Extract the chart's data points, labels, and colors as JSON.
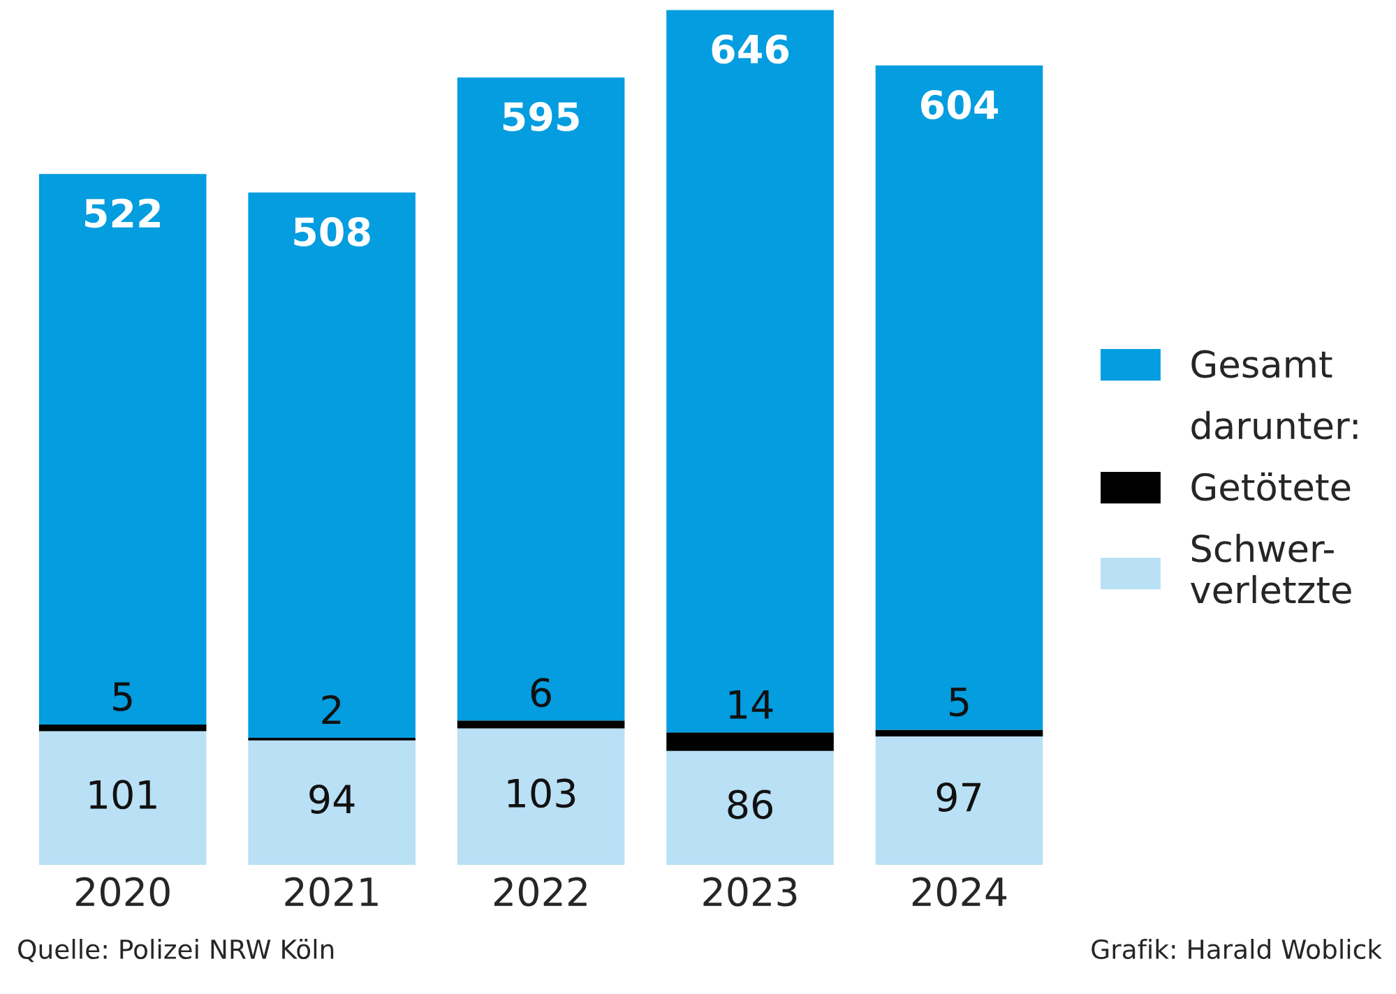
{
  "chart_data": {
    "type": "bar",
    "stacked": true,
    "categories": [
      "2020",
      "2021",
      "2022",
      "2023",
      "2024"
    ],
    "series": [
      {
        "name": "Schwer-\nverletzte",
        "color": "#b9e0f5",
        "values": [
          101,
          94,
          103,
          86,
          97
        ],
        "value_labels": [
          "101",
          "94",
          "103",
          "86",
          "97"
        ]
      },
      {
        "name": "Getötete",
        "color": "#000000",
        "values": [
          5,
          2,
          6,
          14,
          5
        ],
        "value_labels": [
          "5",
          "2",
          "6",
          "14",
          "5"
        ]
      },
      {
        "name": "Gesamt",
        "color": "#039de0",
        "values": [
          416,
          412,
          486,
          546,
          502
        ]
      }
    ],
    "totals": [
      "522",
      "508",
      "595",
      "646",
      "604"
    ],
    "legend": "right",
    "grid": false,
    "annotations": [
      "darunter:",
      "Quelle: Polizei NRW Köln",
      "Grafik: Harald Woblick"
    ]
  }
}
